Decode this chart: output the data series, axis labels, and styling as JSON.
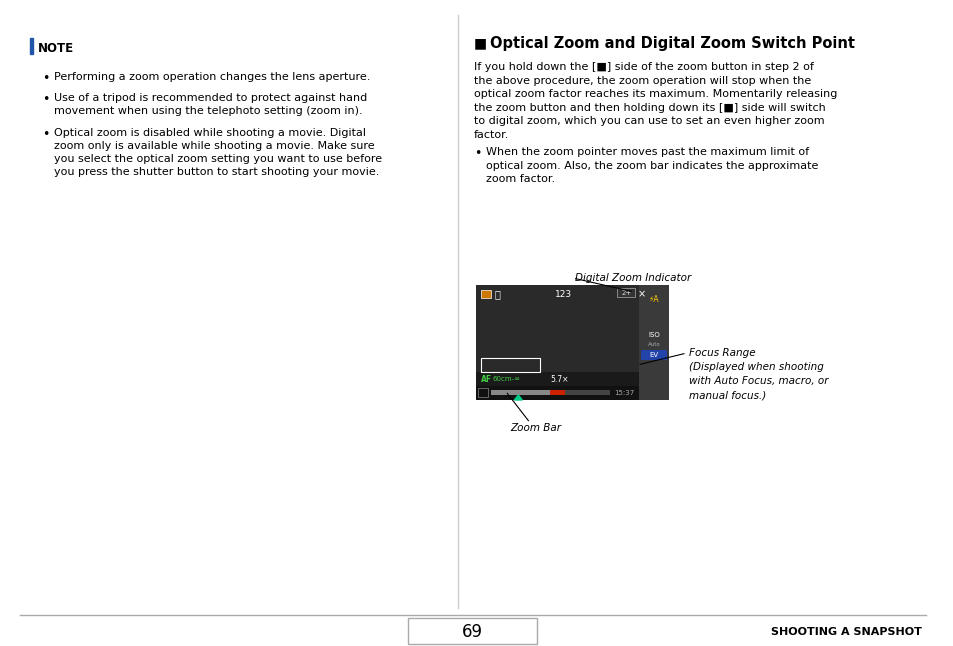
{
  "bg_color": "#ffffff",
  "page_number": "69",
  "footer_right": "SHOOTING A SNAPSHOT",
  "left_panel": {
    "note_title": "NOTE",
    "bullets": [
      "Performing a zoom operation changes the lens aperture.",
      "Use of a tripod is recommended to protect against hand\nmovement when using the telephoto setting (zoom in).",
      "Optical zoom is disabled while shooting a movie. Digital\nzoom only is available while shooting a movie. Make sure\nyou select the optical zoom setting you want to use before\nyou press the shutter button to start shooting your movie."
    ]
  },
  "right_panel": {
    "title": "■  Optical Zoom and Digital Zoom Switch Point",
    "body_lines": [
      "If you hold down the [■] side of the zoom button in step 2 of",
      "the above procedure, the zoom operation will stop when the",
      "optical zoom factor reaches its maximum. Momentarily releasing",
      "the zoom button and then holding down its [■] side will switch",
      "to digital zoom, which you can use to set an even higher zoom",
      "factor."
    ],
    "bullet_lines": [
      "When the zoom pointer moves past the maximum limit of",
      "optical zoom. Also, the zoom bar indicates the approximate",
      "zoom factor."
    ],
    "label_digital_zoom": "Digital Zoom Indicator",
    "label_focus_range": "Focus Range\n(Displayed when shooting\nwith Auto Focus, macro, or\nmanual focus.)",
    "label_zoom_bar": "Zoom Bar"
  }
}
